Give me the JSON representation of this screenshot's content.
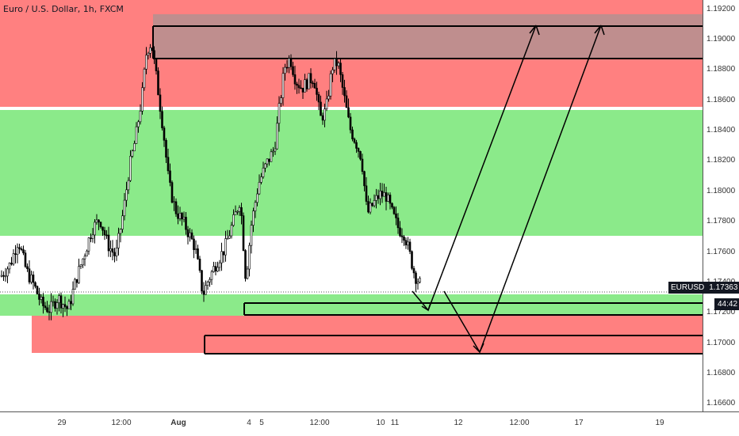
{
  "chart_title": "Euro / U.S. Dollar, 1h, FXCM",
  "badges": {
    "symbol": "EURUSD",
    "last_price": "1.17363",
    "countdown": "44:42",
    "color": "#131722"
  },
  "colors": {
    "up_candle": "#ffffff",
    "down_candle": "#000000",
    "supply_zone": "#ff8080",
    "demand_zone": "#8bea8a",
    "target_zone": "#bf8e8e",
    "annotation": "#000000"
  },
  "chart_data": {
    "type": "candlestick",
    "title": "Euro / U.S. Dollar, 1h, FXCM",
    "symbol": "EURUSD",
    "timeframe": "1h",
    "last_price": 1.17363,
    "ylim": [
      1.1655,
      1.1926
    ],
    "price_ticks": [
      "1.16600",
      "1.16800",
      "1.17000",
      "1.17200",
      "1.17400",
      "1.17600",
      "1.17800",
      "1.18000",
      "1.18200",
      "1.18400",
      "1.18600",
      "1.18800",
      "1.19000",
      "1.19200"
    ],
    "time_ticks": [
      "29",
      "12:00",
      "Aug",
      "4",
      "5",
      "12:00",
      "10",
      "11",
      "12",
      "12:00",
      "17",
      "19"
    ],
    "price_path": [
      [
        0,
        1.1744
      ],
      [
        12,
        1.1752
      ],
      [
        22,
        1.1768
      ],
      [
        32,
        1.1748
      ],
      [
        42,
        1.1738
      ],
      [
        52,
        1.1725
      ],
      [
        62,
        1.1722
      ],
      [
        72,
        1.173
      ],
      [
        85,
        1.1722
      ],
      [
        95,
        1.1742
      ],
      [
        105,
        1.1758
      ],
      [
        115,
        1.1775
      ],
      [
        125,
        1.1782
      ],
      [
        135,
        1.1765
      ],
      [
        145,
        1.1757
      ],
      [
        155,
        1.1788
      ],
      [
        162,
        1.1815
      ],
      [
        170,
        1.1835
      ],
      [
        178,
        1.1862
      ],
      [
        184,
        1.1893
      ],
      [
        190,
        1.1898
      ],
      [
        197,
        1.1872
      ],
      [
        205,
        1.184
      ],
      [
        212,
        1.1805
      ],
      [
        220,
        1.1788
      ],
      [
        232,
        1.1778
      ],
      [
        245,
        1.1763
      ],
      [
        255,
        1.1732
      ],
      [
        262,
        1.1742
      ],
      [
        272,
        1.1753
      ],
      [
        282,
        1.1762
      ],
      [
        292,
        1.1778
      ],
      [
        302,
        1.1795
      ],
      [
        309,
        1.1742
      ],
      [
        316,
        1.1778
      ],
      [
        325,
        1.1805
      ],
      [
        335,
        1.1818
      ],
      [
        345,
        1.1828
      ],
      [
        352,
        1.1858
      ],
      [
        358,
        1.1882
      ],
      [
        365,
        1.1888
      ],
      [
        372,
        1.1873
      ],
      [
        380,
        1.1868
      ],
      [
        388,
        1.1873
      ],
      [
        395,
        1.1875
      ],
      [
        403,
        1.1848
      ],
      [
        410,
        1.1853
      ],
      [
        418,
        1.1882
      ],
      [
        425,
        1.1885
      ],
      [
        432,
        1.1865
      ],
      [
        440,
        1.1842
      ],
      [
        448,
        1.1832
      ],
      [
        455,
        1.1822
      ],
      [
        462,
        1.1785
      ],
      [
        470,
        1.1792
      ],
      [
        478,
        1.1798
      ],
      [
        486,
        1.1797
      ],
      [
        494,
        1.1785
      ],
      [
        502,
        1.1775
      ],
      [
        509,
        1.1772
      ],
      [
        516,
        1.1758
      ],
      [
        522,
        1.1745
      ],
      [
        530,
        1.1738
      ]
    ]
  },
  "zones": [
    {
      "name": "supply-zone-top",
      "type": "supply",
      "price_top": 1.1926,
      "price_bottom": 1.1856
    },
    {
      "name": "demand-zone-wide",
      "type": "demand",
      "price_top": 1.18547,
      "price_bottom": 1.17729
    },
    {
      "name": "demand-zone-current",
      "type": "demand",
      "price_top": 1.17346,
      "price_bottom": 1.17206
    },
    {
      "name": "supply-zone-lower-left",
      "type": "supply",
      "price_top": 1.17206,
      "price_bottom": 1.16965
    },
    {
      "name": "supply-zone-lower-right",
      "type": "supply",
      "price_top": 1.17206,
      "price_bottom": 1.16965
    },
    {
      "name": "target-box",
      "type": "target",
      "price_top": 1.19161,
      "price_bottom": 1.18878
    }
  ]
}
